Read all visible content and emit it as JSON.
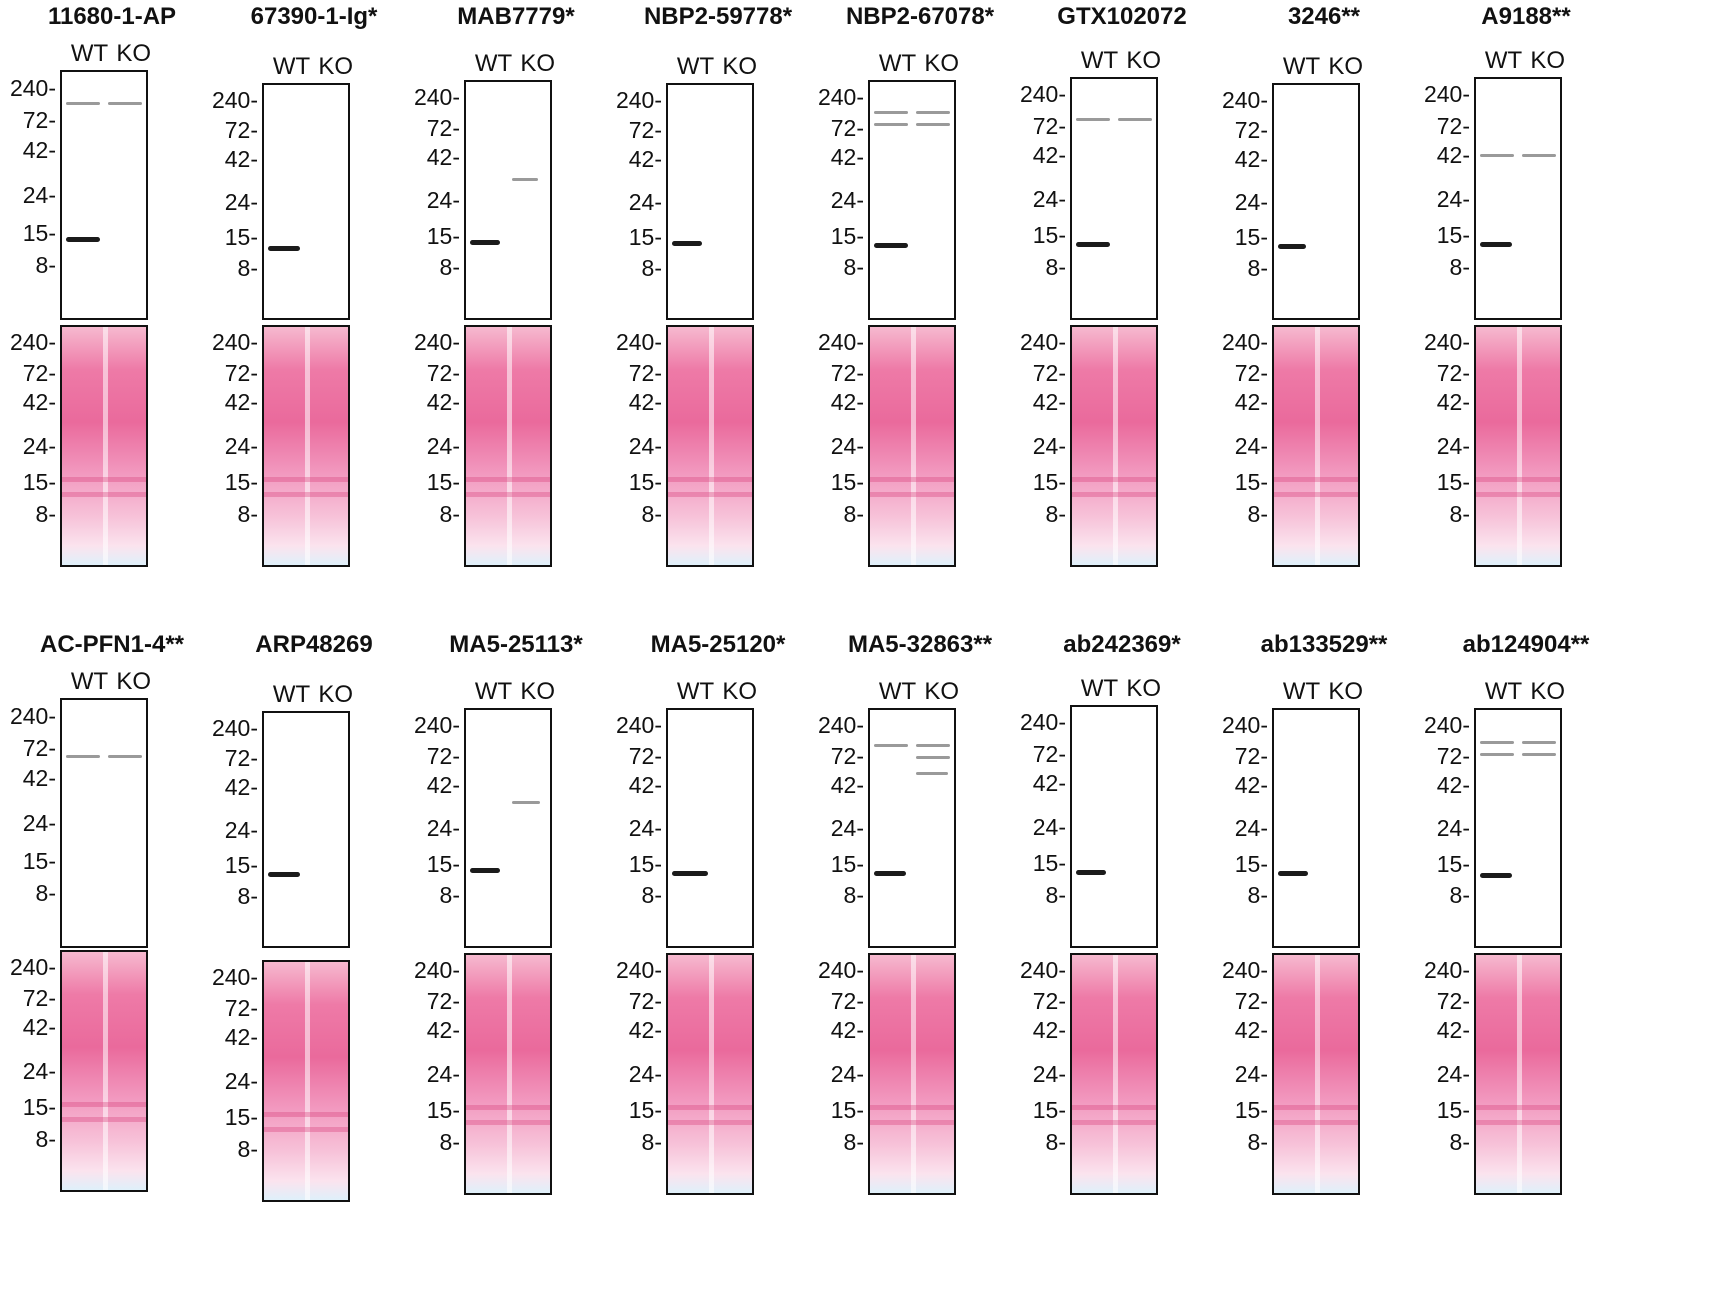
{
  "lane_labels": "WT KO",
  "mw_markers": [
    "240-",
    "72-",
    "42-",
    "24-",
    "15-",
    "8-"
  ],
  "colors": {
    "ponceau_pink": "#ea6a9c",
    "blot_border": "#111111",
    "band": "#1b1b1b"
  },
  "panels": [
    {
      "title": "11680-1-AP",
      "wb_bands": [
        "WT 15 kDa strong",
        "WT/KO ~100 kDa"
      ]
    },
    {
      "title": "67390-1-Ig*",
      "wb_bands": [
        "WT 15 kDa strong"
      ]
    },
    {
      "title": "MAB7779*",
      "wb_bands": [
        "WT 15 kDa",
        "KO ~35 kDa faint"
      ]
    },
    {
      "title": "NBP2-59778*",
      "wb_bands": [
        "WT 15 kDa"
      ]
    },
    {
      "title": "NBP2-67078*",
      "wb_bands": [
        "WT 15 kDa strong",
        "WT/KO ~100 kDa",
        "WT/KO ~80 kDa"
      ]
    },
    {
      "title": "GTX102072",
      "wb_bands": [
        "WT 15 kDa strong",
        "WT/KO ~85 kDa"
      ]
    },
    {
      "title": "3246**",
      "wb_bands": [
        "WT 15 kDa"
      ]
    },
    {
      "title": "A9188**",
      "wb_bands": [
        "WT 15 kDa strong",
        "WT/KO ~45 kDa faint"
      ]
    },
    {
      "title": "AC-PFN1-4**",
      "wb_bands": [
        "WT/KO ~80 kDa faint"
      ]
    },
    {
      "title": "ARP48269",
      "wb_bands": [
        "WT 15 kDa"
      ]
    },
    {
      "title": "MA5-25113*",
      "wb_bands": [
        "WT 15 kDa",
        "KO ~40 kDa"
      ]
    },
    {
      "title": "MA5-25120*",
      "wb_bands": [
        "WT 15 kDa strong"
      ]
    },
    {
      "title": "MA5-32863**",
      "wb_bands": [
        "WT 15 kDa",
        "WT/KO ~90 kDa",
        "KO ~72 kDa",
        "KO ~55 kDa"
      ]
    },
    {
      "title": "ab242369*",
      "wb_bands": [
        "WT 15 kDa"
      ]
    },
    {
      "title": "ab133529**",
      "wb_bands": [
        "WT 15 kDa"
      ]
    },
    {
      "title": "ab124904**",
      "wb_bands": [
        "WT 15 kDa strong",
        "WT/KO ~100 kDa",
        "WT/KO ~80 kDa"
      ]
    }
  ]
}
